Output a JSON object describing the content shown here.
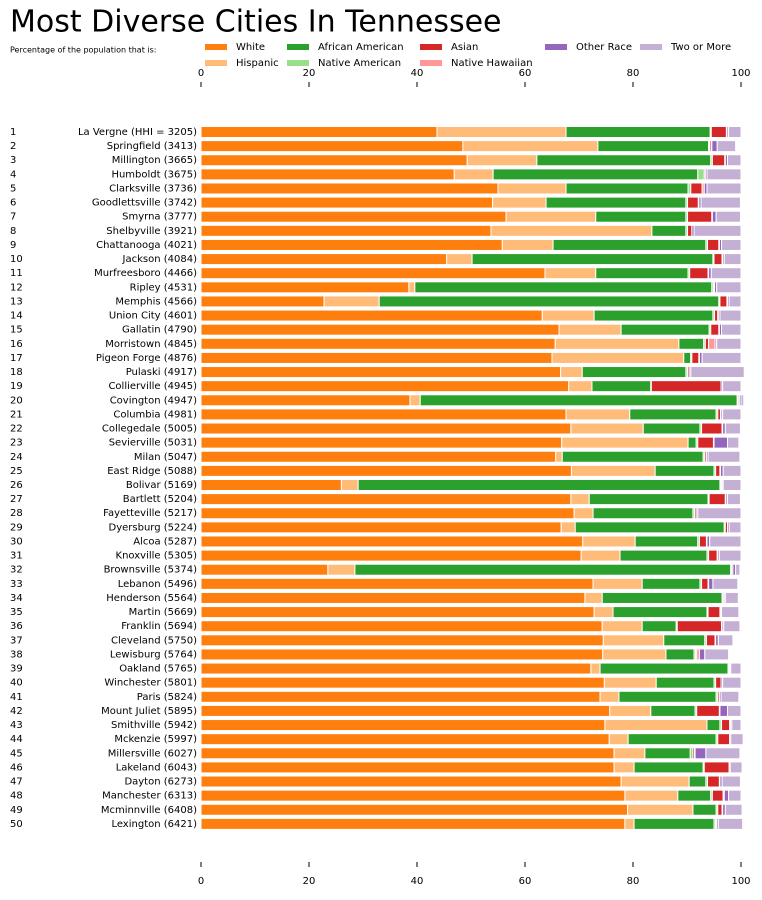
{
  "chart_data": {
    "type": "stacked-barh",
    "title": "Most Diverse Cities In Tennessee",
    "subtitle": "Percentage of the population that is:",
    "ranks": [
      1,
      2,
      3,
      4,
      5,
      6,
      7,
      8,
      9,
      10,
      11,
      12,
      13,
      14,
      15,
      16,
      17,
      18,
      19,
      20,
      21,
      22,
      23,
      24,
      25,
      26,
      27,
      28,
      29,
      30,
      31,
      32,
      33,
      34,
      35,
      36,
      37,
      38,
      39,
      40,
      41,
      42,
      43,
      44,
      45,
      46,
      47,
      48,
      49,
      50
    ],
    "categories": [
      "La Vergne (HHI = 3205)",
      "Springfield (3413)",
      "Millington (3665)",
      "Humboldt (3675)",
      "Clarksville (3736)",
      "Goodlettsville (3742)",
      "Smyrna (3777)",
      "Shelbyville (3921)",
      "Chattanooga (4021)",
      "Jackson (4084)",
      "Murfreesboro (4466)",
      "Ripley (4531)",
      "Memphis (4566)",
      "Union City (4601)",
      "Gallatin (4790)",
      "Morristown (4845)",
      "Pigeon Forge (4876)",
      "Pulaski (4917)",
      "Collierville (4945)",
      "Covington (4947)",
      "Columbia (4981)",
      "Collegedale (5005)",
      "Sevierville (5031)",
      "Milan (5047)",
      "East Ridge (5088)",
      "Bolivar (5169)",
      "Bartlett (5204)",
      "Fayetteville (5217)",
      "Dyersburg (5224)",
      "Alcoa (5287)",
      "Knoxville (5305)",
      "Brownsville (5374)",
      "Lebanon (5496)",
      "Henderson (5564)",
      "Martin (5669)",
      "Franklin (5694)",
      "Cleveland (5750)",
      "Lewisburg (5764)",
      "Oakland (5765)",
      "Winchester (5801)",
      "Paris (5824)",
      "Mount Juliet (5895)",
      "Smithville (5942)",
      "Mckenzie (5997)",
      "Millersville (6027)",
      "Lakeland (6043)",
      "Dayton (6273)",
      "Manchester (6313)",
      "Mcminnville (6408)",
      "Lexington (6421)"
    ],
    "series": [
      {
        "name": "White",
        "color": "#ff7f0e",
        "values": [
          43.7,
          48.5,
          49.3,
          46.9,
          55,
          54,
          56.5,
          53.7,
          55.8,
          45.5,
          63.7,
          38.5,
          22.8,
          63.2,
          66.3,
          65.6,
          65,
          66.6,
          68.1,
          38.7,
          67.6,
          68.5,
          66.8,
          65.7,
          68.6,
          26,
          68.5,
          69.1,
          66.7,
          70.7,
          70.4,
          23.5,
          72.6,
          71.1,
          72.8,
          74.3,
          74.5,
          74.4,
          72.2,
          74.7,
          73.9,
          75.7,
          74.8,
          75.6,
          76.5,
          76.5,
          77.8,
          78.5,
          79,
          78.5
        ]
      },
      {
        "name": "Hispanic",
        "color": "#ffbb78",
        "values": [
          23.9,
          25,
          12.9,
          7.2,
          12.6,
          9.9,
          16.6,
          29.8,
          9.4,
          4.7,
          9.4,
          1.1,
          10.2,
          9.6,
          11.5,
          22.9,
          24.4,
          4,
          4.3,
          1.9,
          11.8,
          13.4,
          23.4,
          1.2,
          15.5,
          3.1,
          3.4,
          3.5,
          2.6,
          9.7,
          7.2,
          5,
          9.1,
          3.2,
          3.5,
          7.4,
          11.2,
          11.7,
          1.7,
          9.6,
          3.5,
          7.6,
          18.9,
          3.5,
          5.7,
          3.7,
          12.6,
          9.8,
          12.1,
          1.7
        ]
      },
      {
        "name": "African American",
        "color": "#2ca02c",
        "values": [
          26.7,
          20.5,
          32.2,
          37.9,
          22.6,
          25.9,
          16.7,
          6.3,
          28.3,
          44.6,
          17.1,
          55,
          62.9,
          22,
          16.3,
          4.6,
          1.3,
          19.2,
          10.9,
          58.7,
          16,
          10.5,
          1.5,
          26.1,
          10.9,
          67,
          22,
          18.5,
          27.6,
          11.6,
          16.1,
          69.6,
          10.7,
          22.2,
          17.4,
          6.3,
          7.6,
          5.2,
          23.7,
          10.7,
          18,
          8.2,
          2.4,
          16.3,
          8.4,
          12.8,
          3.1,
          6.1,
          4.3,
          14.8
        ]
      },
      {
        "name": "Native American",
        "color": "#98df8a",
        "values": [
          0.2,
          0.2,
          0.3,
          1.2,
          0.5,
          0.3,
          0.3,
          0.3,
          0.3,
          0.2,
          0.3,
          0.3,
          0.2,
          0.3,
          0.3,
          0.3,
          0.2,
          0.3,
          0.1,
          0.2,
          0.3,
          0.3,
          0.3,
          0.3,
          0.3,
          0.2,
          0.2,
          0.3,
          0.2,
          0.3,
          0.3,
          0.2,
          0.3,
          0.2,
          0.2,
          0.2,
          0.3,
          0.3,
          0.2,
          0.3,
          0.3,
          0.3,
          0.3,
          0.3,
          0.5,
          0.2,
          0.3,
          0.3,
          0.3,
          0.3
        ]
      },
      {
        "name": "Asian",
        "color": "#d62728",
        "values": [
          2.8,
          0.3,
          2.3,
          0.2,
          2.1,
          2,
          4.5,
          0.8,
          2.1,
          1.5,
          3.4,
          0.2,
          1.3,
          0.6,
          1.5,
          0.6,
          1.3,
          0.3,
          12.9,
          0.2,
          0.5,
          3.8,
          2.9,
          0.3,
          0.8,
          0.2,
          3,
          0.3,
          0.4,
          1.3,
          1.6,
          0.2,
          1.2,
          0.2,
          2.2,
          8.2,
          1.6,
          0.2,
          0.2,
          1,
          0.3,
          4.2,
          1.5,
          2.2,
          0.3,
          4.6,
          2.2,
          2,
          0.8,
          0.2
        ]
      },
      {
        "name": "Native Hawaiian",
        "color": "#ff9896",
        "values": [
          0.1,
          0.1,
          0.1,
          0,
          0.4,
          0.1,
          0.1,
          0,
          0.1,
          0.1,
          0.1,
          0,
          0.1,
          0.1,
          0.1,
          1.2,
          0.1,
          0,
          0,
          0,
          0.1,
          0.1,
          0.1,
          0,
          0.1,
          0,
          0.1,
          0,
          0,
          0.1,
          0.1,
          0,
          0.1,
          0,
          0.1,
          0.1,
          0.1,
          0.5,
          0,
          0,
          0,
          0.1,
          0.2,
          0,
          0.1,
          0,
          0.1,
          0.2,
          0.1,
          0
        ]
      },
      {
        "name": "Other Race",
        "color": "#9467bd",
        "values": [
          0.3,
          1,
          0.4,
          0.3,
          0.5,
          0.4,
          0.7,
          0.4,
          0.4,
          0.3,
          0.5,
          0.4,
          0.3,
          0.3,
          0.4,
          0.3,
          0.5,
          0.3,
          0.3,
          0.3,
          0.3,
          0.5,
          2.5,
          0.3,
          0.5,
          0.2,
          0.3,
          0.3,
          0.3,
          0.5,
          0.3,
          0.5,
          0.8,
          0.2,
          0.2,
          0.3,
          0.5,
          1,
          0.1,
          0.3,
          0.3,
          1.4,
          0.2,
          0.2,
          2,
          0.2,
          0.4,
          0.8,
          0.5,
          0.3
        ]
      },
      {
        "name": "Two or More",
        "color": "#c5b0d5",
        "values": [
          2.3,
          3.4,
          2.5,
          6.3,
          6.3,
          7.3,
          4.5,
          8.7,
          3.6,
          3.1,
          5.5,
          4.5,
          2.2,
          3.9,
          3.6,
          4.5,
          7.2,
          9.9,
          3.4,
          0.5,
          3.4,
          2.8,
          2.1,
          5.9,
          3.3,
          3.3,
          2.4,
          8,
          2.2,
          5.8,
          4,
          0.8,
          4.6,
          2.4,
          3.2,
          3,
          2.7,
          4.4,
          1.9,
          3.4,
          3.3,
          2.5,
          1.7,
          2.3,
          6.3,
          2.2,
          3.4,
          2.3,
          3.1,
          4.5
        ]
      }
    ],
    "xlim": [
      0,
      100
    ],
    "xticks": [
      0,
      20,
      40,
      60,
      80,
      100
    ]
  }
}
